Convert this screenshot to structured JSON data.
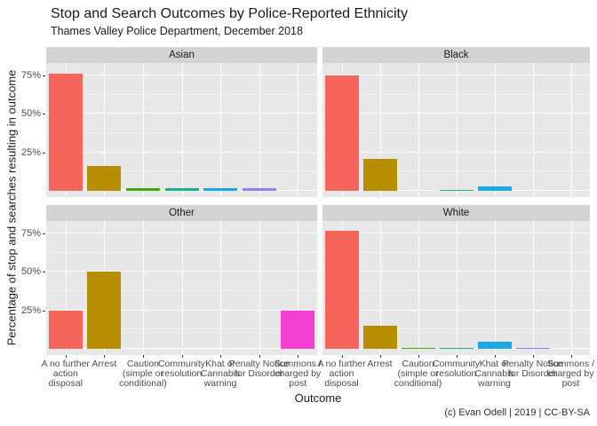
{
  "chart_data": {
    "type": "bar",
    "title": "Stop and Search Outcomes by Police-Reported Ethnicity",
    "subtitle": "Thames Valley Police Department, December 2018",
    "caption": "(c) Evan Odell | 2019 | CC-BY-SA",
    "xlabel": "Outcome",
    "ylabel": "Percentage of stop and searches resulting in outcome",
    "facet_by": "police-reported ethnicity",
    "facets": [
      "Asian",
      "Black",
      "Other",
      "White"
    ],
    "categories": [
      "A no further action disposal",
      "Arrest",
      "Caution (simple or conditional)",
      "Community resolution",
      "Khat or Cannabis warning",
      "Penalty Notice for Disorder",
      "Summons / charged by post"
    ],
    "tick_labels": [
      "A no further\naction\ndisposal",
      "Arrest",
      "Caution\n(simple or\nconditional)",
      "Community\nresolution",
      "Khat or\nCannabis\nwarning",
      "Penalty Notice\nfor Disorder",
      "Summons /\ncharged by\npost"
    ],
    "series": [
      {
        "name": "Asian",
        "values": [
          76,
          16,
          1.5,
          2,
          2,
          1.5,
          0
        ]
      },
      {
        "name": "Black",
        "values": [
          75,
          21,
          0,
          0.7,
          3,
          0,
          0
        ]
      },
      {
        "name": "Other",
        "values": [
          25,
          50,
          0,
          0,
          0,
          0,
          25
        ]
      },
      {
        "name": "White",
        "values": [
          77,
          15,
          0.7,
          0.7,
          4.5,
          0.7,
          0
        ]
      }
    ],
    "values_unit": "percent",
    "bar_colors": [
      "#F5655C",
      "#B78E00",
      "#43A80D",
      "#1FB089",
      "#1BA9E3",
      "#9181EC",
      "#F23FD0"
    ],
    "y_ticks": [
      "25%",
      "50%",
      "75%"
    ],
    "ylim": [
      0,
      80
    ],
    "grid": true,
    "legend": "none",
    "style": {
      "panel_bg": "#E7E7E7",
      "strip_bg": "#D3D3D3",
      "grid_major": "#FFFFFF",
      "grid_minor": "#F2F2F2",
      "tick_mark": "#333333",
      "tick_text": "#4D4D4D",
      "text": "#1A1A1A"
    }
  }
}
